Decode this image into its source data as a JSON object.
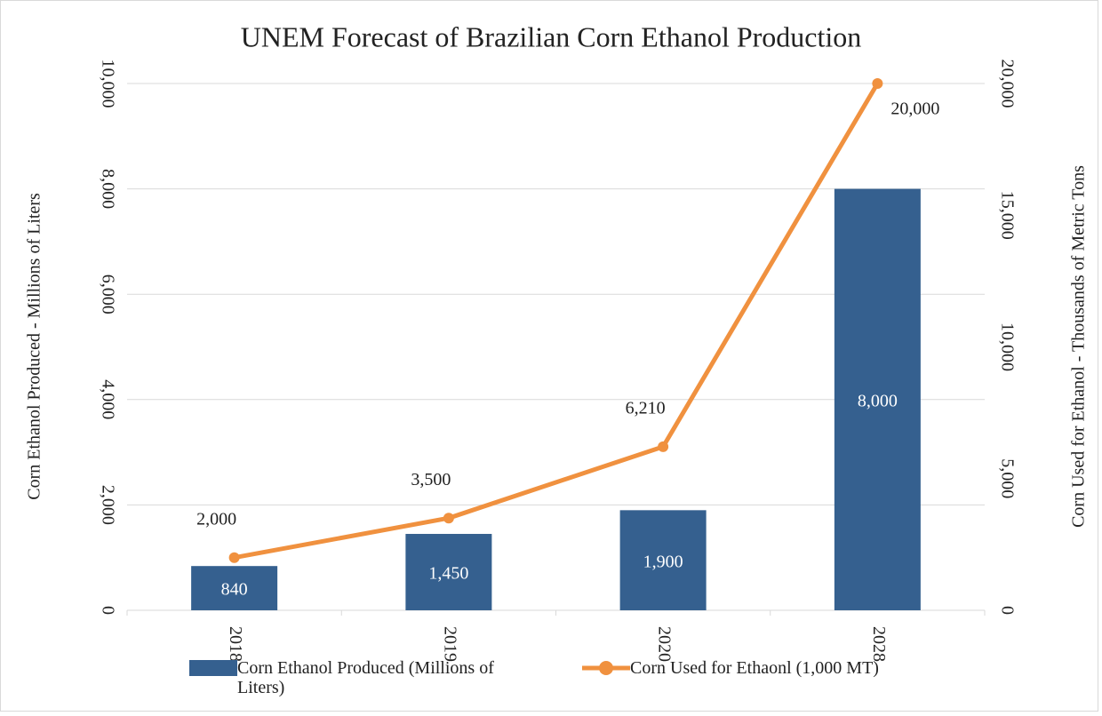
{
  "chart_data": {
    "type": "bar+line",
    "title": "UNEM Forecast of Brazilian Corn Ethanol Production",
    "y_label": "Corn Ethanol Produced - Millions of Liters",
    "y2_label": "Corn Used for Ethanol - Thousands of Metric Tons",
    "categories": [
      "2018",
      "2019",
      "2020",
      "2028"
    ],
    "series": [
      {
        "name": "Corn Ethanol Produced (Millions of Liters)",
        "type": "bar",
        "color": "#35608f",
        "axis": "y",
        "values": [
          840,
          1450,
          1900,
          8000
        ],
        "value_labels": [
          "840",
          "1,450",
          "1,900",
          "8,000"
        ]
      },
      {
        "name": "Corn Used for Ethaonl (1,000 MT)",
        "type": "line",
        "color": "#f0913f",
        "axis": "y2",
        "values": [
          2000,
          3500,
          6210,
          20000
        ],
        "value_labels": [
          "2,000",
          "3,500",
          "6,210",
          "20,000"
        ]
      }
    ],
    "ylim": [
      0,
      10000
    ],
    "yticks": [
      0,
      {
        "value": 2000,
        "label": "2,000"
      },
      {
        "value": 4000,
        "label": "4,000"
      },
      {
        "value": 6000,
        "label": "6,000"
      },
      {
        "value": 8000,
        "label": "8,000"
      },
      {
        "value": 10000,
        "label": "10,000"
      }
    ],
    "y2lim": [
      0,
      20000
    ],
    "y2ticks": [
      0,
      {
        "value": 5000,
        "label": "5,000"
      },
      {
        "value": 10000,
        "label": "10,000"
      },
      {
        "value": 15000,
        "label": "15,000"
      },
      {
        "value": 20000,
        "label": "20,000"
      }
    ],
    "grid": true,
    "legend": "bottom"
  }
}
